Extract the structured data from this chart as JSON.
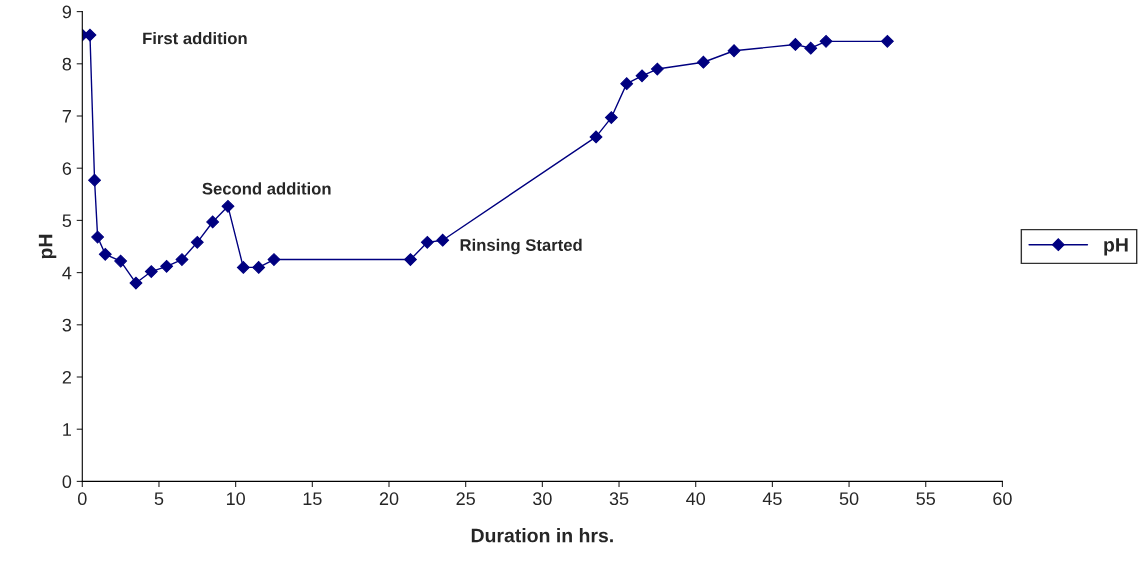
{
  "chart_data": {
    "type": "line",
    "xlabel": "Duration in hrs.",
    "ylabel": "pH",
    "x": [
      0,
      0.5,
      0.8,
      1,
      1.5,
      2.5,
      3.5,
      4.5,
      5.5,
      6.5,
      7.5,
      8.5,
      9.5,
      10.5,
      11.5,
      12.5,
      21.4,
      22.5,
      23.5,
      33.5,
      34.5,
      35.5,
      36.5,
      37.5,
      40.5,
      42.5,
      46.5,
      47.5,
      48.5,
      52.5
    ],
    "series": [
      {
        "name": "pH",
        "color": "#000080",
        "values": [
          8.55,
          8.55,
          5.77,
          4.68,
          4.35,
          4.22,
          3.8,
          4.02,
          4.12,
          4.25,
          4.58,
          4.97,
          5.27,
          4.1,
          4.1,
          4.25,
          4.25,
          4.58,
          4.62,
          6.6,
          6.97,
          7.62,
          7.77,
          7.9,
          8.03,
          8.25,
          8.37,
          8.3,
          8.43,
          8.43
        ]
      }
    ],
    "xlim": [
      0,
      60
    ],
    "xticks": [
      0,
      5,
      10,
      15,
      20,
      25,
      30,
      35,
      40,
      45,
      50,
      55,
      60
    ],
    "ylim": [
      0,
      9
    ],
    "yticks": [
      0,
      1,
      2,
      3,
      4,
      5,
      6,
      7,
      8,
      9
    ],
    "marker": "diamond",
    "line_style": "solid",
    "grid": false,
    "legend": "right",
    "annotations": [
      "First addition",
      "Second addition",
      "Rinsing Started"
    ]
  }
}
